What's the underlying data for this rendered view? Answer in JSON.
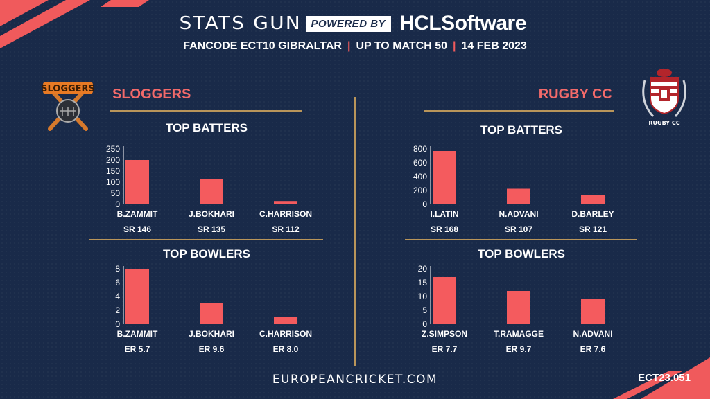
{
  "header": {
    "brand": "STATS GUN",
    "powered_by": "POWERED BY",
    "sponsor": "HCLSoftware",
    "competition": "FANCODE ECT10 GIBRALTAR",
    "match_range": "UP TO MATCH  50",
    "date": "14 FEB 2023"
  },
  "teams": {
    "left": {
      "name": "SLOGGERS",
      "logo_text": "SLOGGERS"
    },
    "right": {
      "name": "RUGBY CC",
      "logo_text": "RUGBY CC"
    }
  },
  "footer": {
    "site": "EUROPEANCRICKET.COM",
    "code": "ECT23.051"
  },
  "colors": {
    "background": "#192a49",
    "bar": "#f45b5e",
    "accent": "#f26a6a",
    "rule": "#b9955a"
  },
  "chart_data": [
    {
      "type": "bar",
      "title": "TOP BATTERS",
      "team": "SLOGGERS",
      "categories": [
        "B.ZAMMIT",
        "J.BOKHARI",
        "C.HARRISON"
      ],
      "values": [
        200,
        113,
        15
      ],
      "sublabels": [
        "SR 146",
        "SR 135",
        "SR 112"
      ],
      "yticks": [
        0,
        50,
        100,
        150,
        200,
        250
      ],
      "ylim": [
        0,
        250
      ]
    },
    {
      "type": "bar",
      "title": "TOP BOWLERS",
      "team": "SLOGGERS",
      "categories": [
        "B.ZAMMIT",
        "J.BOKHARI",
        "C.HARRISON"
      ],
      "values": [
        8,
        3,
        1
      ],
      "sublabels": [
        "ER 5.7",
        "ER 9.6",
        "ER 8.0"
      ],
      "yticks": [
        0,
        2,
        4,
        6,
        8
      ],
      "ylim": [
        0,
        8
      ]
    },
    {
      "type": "bar",
      "title": "TOP BATTERS",
      "team": "RUGBY CC",
      "categories": [
        "I.LATIN",
        "N.ADVANI",
        "D.BARLEY"
      ],
      "values": [
        770,
        225,
        130
      ],
      "sublabels": [
        "SR 168",
        "SR 107",
        "SR 121"
      ],
      "yticks": [
        0,
        200,
        400,
        600,
        800
      ],
      "ylim": [
        0,
        800
      ]
    },
    {
      "type": "bar",
      "title": "TOP BOWLERS",
      "team": "RUGBY CC",
      "categories": [
        "Z.SIMPSON",
        "T.RAMAGGE",
        "N.ADVANI"
      ],
      "values": [
        17,
        12,
        9
      ],
      "sublabels": [
        "ER 7.7",
        "ER 9.7",
        "ER 7.6"
      ],
      "yticks": [
        0,
        5,
        10,
        15,
        20
      ],
      "ylim": [
        0,
        20
      ]
    }
  ]
}
